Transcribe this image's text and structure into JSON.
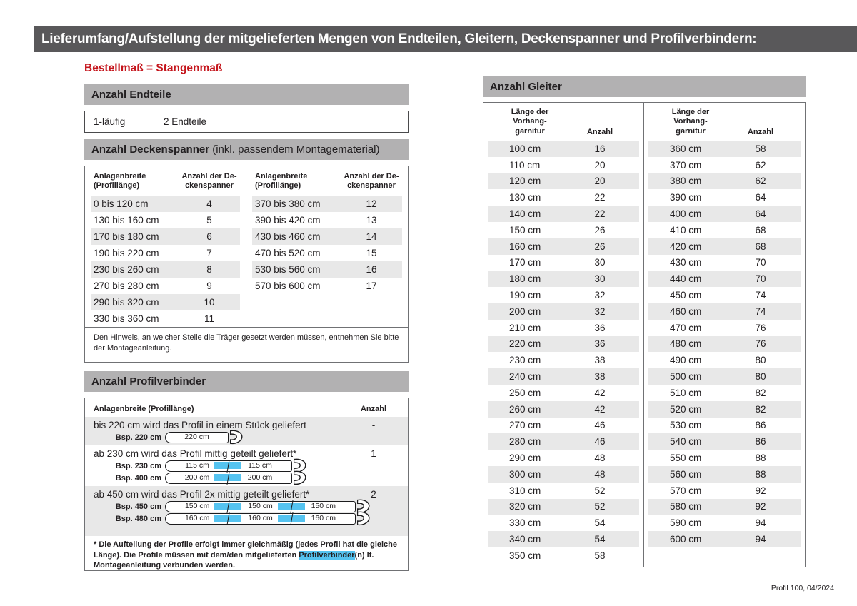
{
  "header": {
    "title": "Lieferumfang/Aufstellung der mitgelieferten Mengen von Endteilen, Gleitern, Deckenspanner und Profilverbindern:"
  },
  "footer": {
    "text": "Profil 100, 04/2024"
  },
  "order_note": "Bestellmaß = Stangenmaß",
  "endteile": {
    "heading": "Anzahl Endteile",
    "type_label": "1-läufig",
    "value": "2 Endteile"
  },
  "deckenspanner": {
    "heading": "Anzahl Deckenspanner",
    "heading_suffix": " (inkl. passendem Montagematerial)",
    "col_width_header": "Anlagenbreite\n(Profillänge)",
    "col_count_header": "Anzahl der De-\nckenspanner",
    "table_left": [
      [
        "0 bis 120 cm",
        "4"
      ],
      [
        "130 bis 160 cm",
        "5"
      ],
      [
        "170 bis 180 cm",
        "6"
      ],
      [
        "190 bis 220 cm",
        "7"
      ],
      [
        "230 bis 260 cm",
        "8"
      ],
      [
        "270 bis 280 cm",
        "9"
      ],
      [
        "290 bis 320 cm",
        "10"
      ],
      [
        "330 bis 360 cm",
        "11"
      ]
    ],
    "table_right": [
      [
        "370 bis 380 cm",
        "12"
      ],
      [
        "390 bis 420 cm",
        "13"
      ],
      [
        "430 bis 460 cm",
        "14"
      ],
      [
        "470 bis 520 cm",
        "15"
      ],
      [
        "530 bis 560 cm",
        "16"
      ],
      [
        "570 bis 600 cm",
        "17"
      ]
    ],
    "note": "Den Hinweis, an welcher Stelle die Träger gesetzt werden müssen, entnehmen Sie bitte der Montageanleitung."
  },
  "profilverbinder": {
    "heading": "Anzahl Profilverbinder",
    "col_left_header": "Anlagenbreite (Profillänge)",
    "col_count_header": "Anzahl",
    "rows": [
      {
        "text": "bis 220 cm wird das Profil in einem Stück geliefert",
        "count": "-",
        "examples": [
          {
            "label": "Bsp. 220 cm",
            "segments": [
              "220 cm"
            ]
          }
        ]
      },
      {
        "text": "ab 230 cm wird das Profil mittig geteilt geliefert*",
        "count": "1",
        "examples": [
          {
            "label": "Bsp. 230 cm",
            "segments": [
              "115 cm",
              "115 cm"
            ]
          },
          {
            "label": "Bsp. 400 cm",
            "segments": [
              "200 cm",
              "200 cm"
            ]
          }
        ]
      },
      {
        "text": "ab 450 cm wird das Profil 2x mittig geteilt geliefert*",
        "count": "2",
        "examples": [
          {
            "label": "Bsp. 450 cm",
            "segments": [
              "150 cm",
              "150 cm",
              "150 cm"
            ]
          },
          {
            "label": "Bsp. 480 cm",
            "segments": [
              "160 cm",
              "160 cm",
              "160 cm"
            ]
          }
        ]
      }
    ],
    "footnote_pre": "* Die Aufteilung der Profile erfolgt immer gleichmäßig (jedes Profil hat die gleiche Länge). Die Profile müssen mit dem/den mitgelieferten ",
    "footnote_highlight": "Profilverbinder",
    "footnote_post": "(n) lt. Montageanleitung verbunden werden."
  },
  "gleiter": {
    "heading": "Anzahl Gleiter",
    "col_length_header": "Länge der\nVorhang-\ngarnitur",
    "col_count_header": "Anzahl",
    "table_left": [
      [
        "100 cm",
        "16"
      ],
      [
        "110 cm",
        "20"
      ],
      [
        "120 cm",
        "20"
      ],
      [
        "130 cm",
        "22"
      ],
      [
        "140 cm",
        "22"
      ],
      [
        "150 cm",
        "26"
      ],
      [
        "160 cm",
        "26"
      ],
      [
        "170 cm",
        "30"
      ],
      [
        "180 cm",
        "30"
      ],
      [
        "190 cm",
        "32"
      ],
      [
        "200 cm",
        "32"
      ],
      [
        "210 cm",
        "36"
      ],
      [
        "220 cm",
        "36"
      ],
      [
        "230 cm",
        "38"
      ],
      [
        "240 cm",
        "38"
      ],
      [
        "250 cm",
        "42"
      ],
      [
        "260 cm",
        "42"
      ],
      [
        "270 cm",
        "46"
      ],
      [
        "280 cm",
        "46"
      ],
      [
        "290 cm",
        "48"
      ],
      [
        "300 cm",
        "48"
      ],
      [
        "310 cm",
        "52"
      ],
      [
        "320 cm",
        "52"
      ],
      [
        "330 cm",
        "54"
      ],
      [
        "340 cm",
        "54"
      ],
      [
        "350 cm",
        "58"
      ]
    ],
    "table_right": [
      [
        "360 cm",
        "58"
      ],
      [
        "370 cm",
        "62"
      ],
      [
        "380 cm",
        "62"
      ],
      [
        "390 cm",
        "64"
      ],
      [
        "400 cm",
        "64"
      ],
      [
        "410 cm",
        "68"
      ],
      [
        "420 cm",
        "68"
      ],
      [
        "430 cm",
        "70"
      ],
      [
        "440 cm",
        "70"
      ],
      [
        "450 cm",
        "74"
      ],
      [
        "460 cm",
        "74"
      ],
      [
        "470 cm",
        "76"
      ],
      [
        "480 cm",
        "76"
      ],
      [
        "490 cm",
        "80"
      ],
      [
        "500 cm",
        "80"
      ],
      [
        "510 cm",
        "82"
      ],
      [
        "520 cm",
        "82"
      ],
      [
        "530 cm",
        "86"
      ],
      [
        "540 cm",
        "86"
      ],
      [
        "550 cm",
        "88"
      ],
      [
        "560 cm",
        "88"
      ],
      [
        "570 cm",
        "92"
      ],
      [
        "580 cm",
        "92"
      ],
      [
        "590 cm",
        "94"
      ],
      [
        "600 cm",
        "94"
      ]
    ]
  },
  "colors": {
    "accent_red": "#c5161d",
    "highlight_blue": "#55c3f0",
    "titlebar_gray": "#59585a",
    "section_bar_gray": "#b2b1b2",
    "row_shade_gray": "#e8e8e8"
  }
}
